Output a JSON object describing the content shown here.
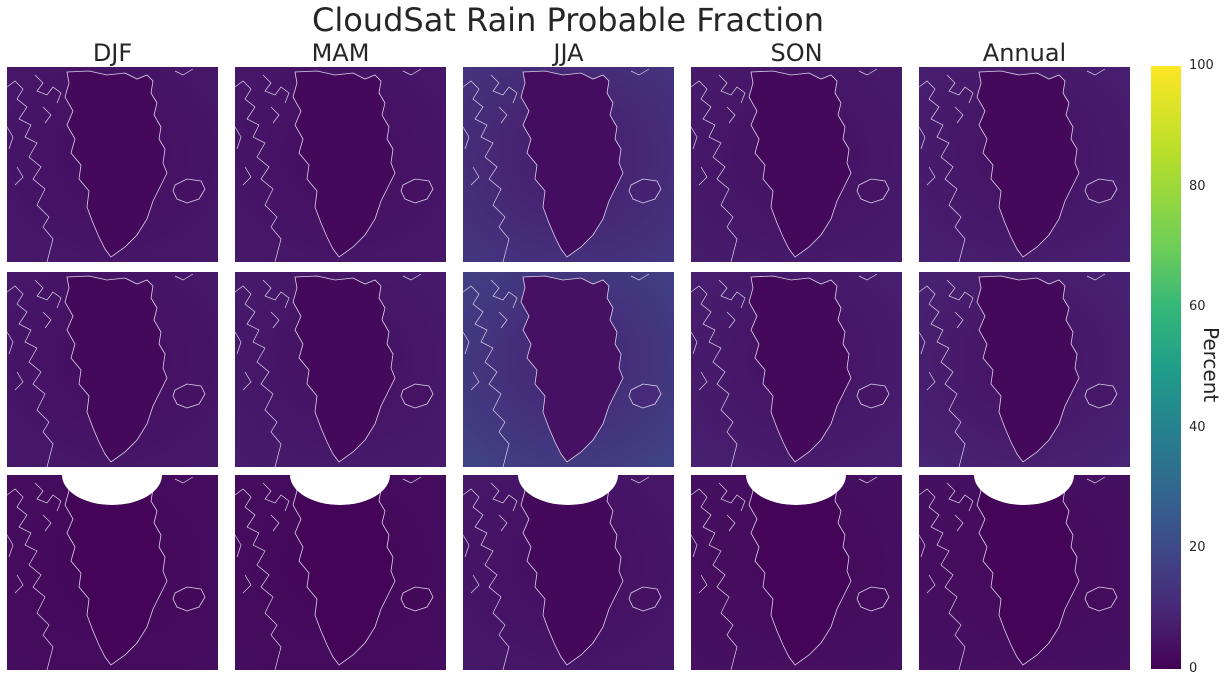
{
  "chart_data": {
    "type": "heatmap",
    "title": "CloudSat Rain Probable Fraction",
    "columns": [
      "DJF",
      "MAM",
      "JJA",
      "SON",
      "Annual"
    ],
    "rows": 3,
    "colorbar": {
      "label": "Percent",
      "range": [
        0,
        100
      ],
      "ticks": [
        0,
        20,
        40,
        60,
        80,
        100
      ],
      "colormap": "viridis"
    },
    "approx_values_percent": {
      "land": [
        [
          2,
          2,
          3,
          2,
          2
        ],
        [
          2,
          2,
          4,
          2,
          2
        ],
        [
          1,
          1,
          2,
          1,
          1
        ]
      ],
      "ocean": [
        [
          6,
          6,
          14,
          7,
          8
        ],
        [
          6,
          7,
          18,
          8,
          9
        ],
        [
          3,
          3,
          6,
          4,
          4
        ]
      ]
    },
    "colors": {
      "land": "#440154",
      "ocean_low": "#471064",
      "ocean_high": "#3b3f85",
      "coast": "#d9d3e8"
    }
  }
}
